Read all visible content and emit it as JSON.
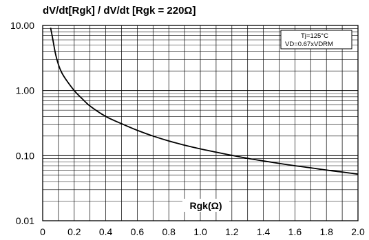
{
  "chart_data": {
    "type": "line",
    "title": "dV/dt[Rgk] / dV/dt [Rgk = 220Ω]",
    "xlabel": "Rgk(Ω)",
    "ylabel": "",
    "xlim": [
      0,
      2.0
    ],
    "ylim": [
      0.01,
      10.0
    ],
    "y_scale": "log",
    "grid": true,
    "x_ticks": [
      "0",
      "0.2",
      "0.4",
      "0.6",
      "0.8",
      "1.0",
      "1.2",
      "1.4",
      "1.6",
      "1.8",
      "2.0"
    ],
    "y_ticks": [
      "0.01",
      "0.10",
      "1.00",
      "10.00"
    ],
    "annotations": [
      "Tj=125°C",
      "VD=0.67xVDRM"
    ],
    "series": [
      {
        "x": [
          0.05,
          0.06,
          0.08,
          0.1,
          0.12,
          0.15,
          0.2,
          0.25,
          0.3,
          0.4,
          0.5,
          0.6,
          0.7,
          0.8,
          0.9,
          1.0,
          1.1,
          1.2,
          1.3,
          1.4,
          1.5,
          1.6,
          1.7,
          1.8,
          1.9,
          2.0
        ],
        "y": [
          9.2,
          7.0,
          3.8,
          2.5,
          1.9,
          1.45,
          1.0,
          0.75,
          0.58,
          0.4,
          0.31,
          0.245,
          0.2,
          0.168,
          0.145,
          0.127,
          0.113,
          0.101,
          0.091,
          0.083,
          0.076,
          0.07,
          0.065,
          0.06,
          0.056,
          0.052
        ]
      }
    ]
  }
}
